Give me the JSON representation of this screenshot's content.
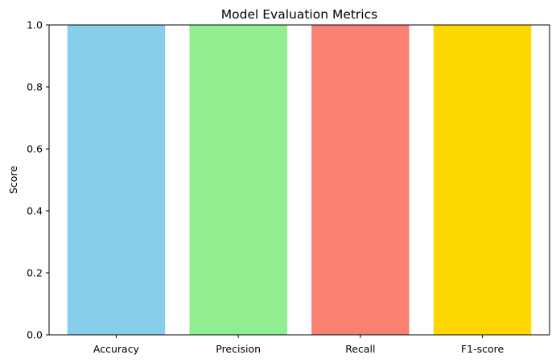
{
  "chart_data": {
    "type": "bar",
    "title": "Model Evaluation Metrics",
    "xlabel": "",
    "ylabel": "Score",
    "categories": [
      "Accuracy",
      "Precision",
      "Recall",
      "F1-score"
    ],
    "values": [
      1.0,
      1.0,
      1.0,
      1.0
    ],
    "colors": [
      "#87CEEB",
      "#90EE90",
      "#FA8072",
      "#FFD700"
    ],
    "ylim": [
      0,
      1.0
    ],
    "yticks": [
      0.0,
      0.2,
      0.4,
      0.6,
      0.8,
      1.0
    ],
    "ytick_labels": [
      "0.0",
      "0.2",
      "0.4",
      "0.6",
      "0.8",
      "1.0"
    ],
    "grid": false,
    "legend": false
  }
}
